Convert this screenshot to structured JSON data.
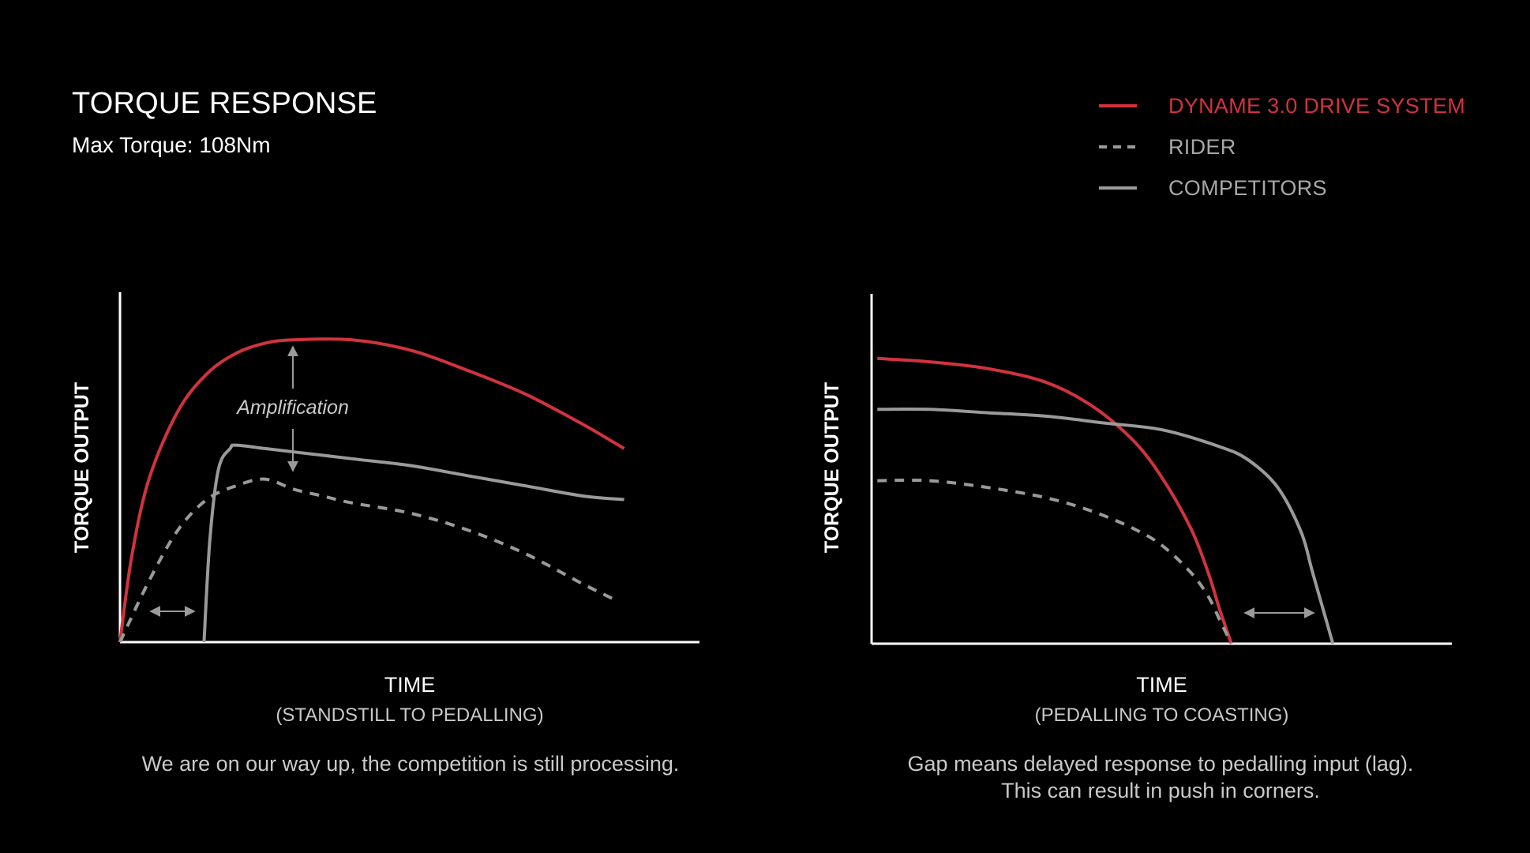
{
  "header": {
    "title": "TORQUE RESPONSE",
    "subtitle": "Max Torque: 108Nm"
  },
  "legend": [
    {
      "label": "DYNAME 3.0 DRIVE SYSTEM",
      "style": "solid",
      "color": "#d1333e",
      "text_color": "#d1333e"
    },
    {
      "label": "RIDER",
      "style": "dashed",
      "color": "#9a9a9a",
      "text_color": "#a8a8a8"
    },
    {
      "label": "COMPETITORS",
      "style": "solid",
      "color": "#9a9a9a",
      "text_color": "#a8a8a8"
    }
  ],
  "colors": {
    "background": "#000000",
    "dyname": "#d1333e",
    "grey": "#9a9a9a",
    "axis": "#ffffff"
  },
  "chart_data": [
    {
      "type": "line",
      "ylabel": "TORQUE OUTPUT",
      "xlabel": "TIME",
      "xlabel_sub": "(STANDSTILL TO PEDALLING)",
      "caption": "We are on our way up, the competition is still processing.",
      "annotation": "Amplification",
      "x_range": [
        0,
        100
      ],
      "y_range": [
        0,
        100
      ],
      "series": [
        {
          "name": "DYNAME 3.0 DRIVE SYSTEM",
          "style": "solid",
          "x": [
            0,
            2,
            5,
            10,
            15,
            20,
            25,
            30,
            40,
            50,
            60,
            70,
            80,
            87
          ],
          "y": [
            0,
            25,
            48,
            68,
            79,
            85,
            88,
            89,
            89,
            86,
            80,
            73,
            64,
            57
          ]
        },
        {
          "name": "RIDER",
          "style": "dashed",
          "x": [
            0,
            5,
            10,
            15,
            20,
            25,
            30,
            35,
            40,
            50,
            60,
            70,
            80,
            86
          ],
          "y": [
            0,
            18,
            33,
            42,
            46,
            48,
            45,
            43,
            41,
            38,
            33,
            26,
            17,
            12
          ]
        },
        {
          "name": "COMPETITORS",
          "style": "solid",
          "x": [
            14.5,
            15.5,
            17,
            19,
            20,
            25,
            30,
            40,
            50,
            60,
            70,
            80,
            87
          ],
          "y": [
            0,
            30,
            51,
            57,
            58,
            57,
            56,
            54,
            52,
            49,
            46,
            43,
            42
          ]
        }
      ]
    },
    {
      "type": "line",
      "ylabel": "TORQUE OUTPUT",
      "xlabel": "TIME",
      "xlabel_sub": "(PEDALLING TO COASTING)",
      "caption": "Gap means delayed response to pedalling input (lag).\nThis can result in push in corners.",
      "x_range": [
        0,
        100
      ],
      "y_range": [
        0,
        100
      ],
      "series": [
        {
          "name": "DYNAME 3.0 DRIVE SYSTEM",
          "style": "solid",
          "x": [
            1,
            10,
            20,
            30,
            38,
            45,
            50,
            55,
            58,
            60,
            62
          ],
          "y": [
            84,
            83,
            81,
            77,
            70,
            60,
            49,
            34,
            21,
            10,
            0
          ]
        },
        {
          "name": "RIDER",
          "style": "dashed",
          "x": [
            1,
            10,
            20,
            30,
            38,
            45,
            50,
            55,
            58,
            60,
            62
          ],
          "y": [
            48,
            48,
            46,
            43,
            39,
            34,
            29,
            21,
            14,
            7,
            0
          ]
        },
        {
          "name": "COMPETITORS",
          "style": "solid",
          "x": [
            1,
            10,
            20,
            30,
            40,
            50,
            60,
            65,
            70,
            74,
            76,
            78.5,
            79.5
          ],
          "y": [
            69,
            69,
            68,
            67,
            65,
            63,
            58,
            54,
            46,
            33,
            21,
            6,
            0
          ]
        }
      ]
    }
  ]
}
